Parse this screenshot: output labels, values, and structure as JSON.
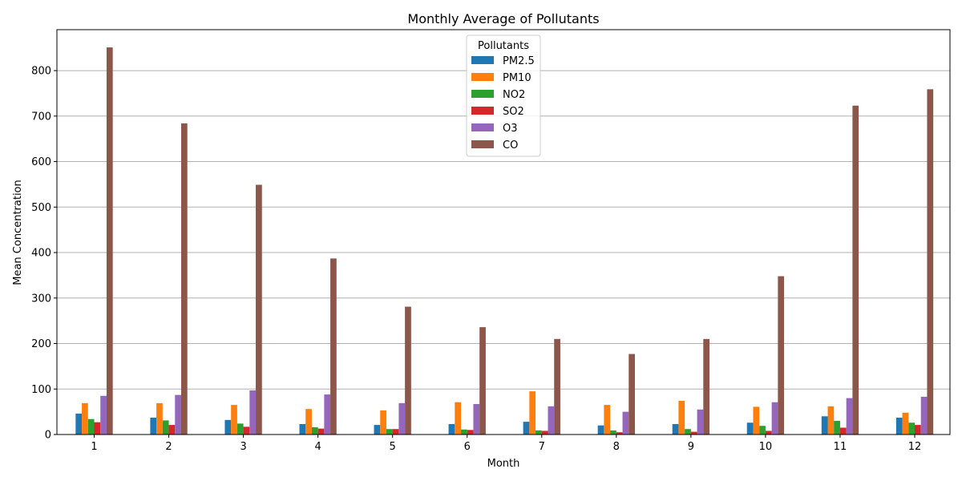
{
  "chart_data": {
    "type": "bar",
    "title": "Monthly Average of Pollutants",
    "xlabel": "Month",
    "ylabel": "Mean Concentration",
    "categories": [
      "1",
      "2",
      "3",
      "4",
      "5",
      "6",
      "7",
      "8",
      "9",
      "10",
      "11",
      "12"
    ],
    "ylim": [
      0,
      890
    ],
    "yticks": [
      0,
      100,
      200,
      300,
      400,
      500,
      600,
      700,
      800
    ],
    "grid": "horizontal",
    "legend": {
      "title": "Pollutants",
      "placement": "upper-center"
    },
    "series": [
      {
        "name": "PM2.5",
        "color": "#1f77b4",
        "values": [
          46,
          37,
          32,
          23,
          21,
          23,
          28,
          20,
          23,
          26,
          40,
          37
        ]
      },
      {
        "name": "PM10",
        "color": "#ff7f0e",
        "values": [
          69,
          69,
          65,
          56,
          53,
          71,
          95,
          65,
          74,
          61,
          62,
          48
        ]
      },
      {
        "name": "NO2",
        "color": "#2ca02c",
        "values": [
          34,
          31,
          24,
          16,
          12,
          11,
          9,
          9,
          12,
          19,
          30,
          26
        ]
      },
      {
        "name": "SO2",
        "color": "#d62728",
        "values": [
          27,
          21,
          17,
          13,
          12,
          10,
          8,
          5,
          6,
          8,
          15,
          21
        ]
      },
      {
        "name": "O3",
        "color": "#9467bd",
        "values": [
          85,
          87,
          97,
          88,
          69,
          67,
          62,
          50,
          55,
          71,
          80,
          83
        ]
      },
      {
        "name": "CO",
        "color": "#8c564b",
        "values": [
          851,
          684,
          549,
          387,
          281,
          236,
          210,
          177,
          210,
          348,
          723,
          759
        ]
      }
    ]
  }
}
